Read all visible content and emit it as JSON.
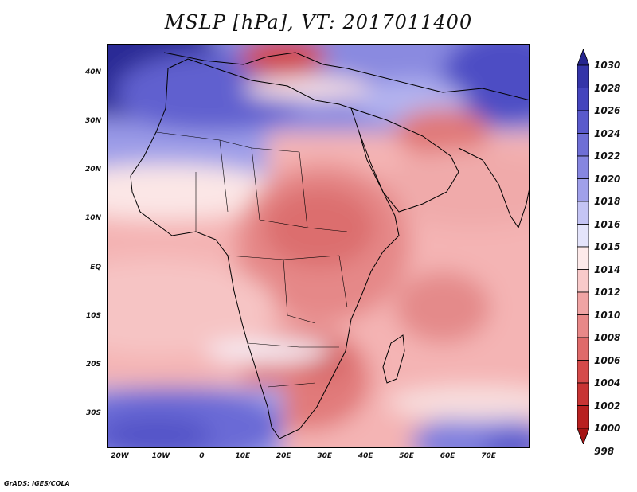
{
  "title": "MSLP [hPa], VT: 2017011400",
  "credit": "GrADS: IGES/COLA",
  "map": {
    "variable": "Mean sea level pressure",
    "units": "hPa",
    "valid_time": "2017011400",
    "lon_range": [
      -23,
      80
    ],
    "lat_range": [
      -37,
      46
    ],
    "lat_ticks": [
      {
        "value": 40,
        "label": "40N"
      },
      {
        "value": 30,
        "label": "30N"
      },
      {
        "value": 20,
        "label": "20N"
      },
      {
        "value": 10,
        "label": "10N"
      },
      {
        "value": 0,
        "label": "EQ"
      },
      {
        "value": -10,
        "label": "10S"
      },
      {
        "value": -20,
        "label": "20S"
      },
      {
        "value": -30,
        "label": "30S"
      }
    ],
    "lon_ticks": [
      {
        "value": -20,
        "label": "20W"
      },
      {
        "value": -10,
        "label": "10W"
      },
      {
        "value": 0,
        "label": "0"
      },
      {
        "value": 10,
        "label": "10E"
      },
      {
        "value": 20,
        "label": "20E"
      },
      {
        "value": 30,
        "label": "30E"
      },
      {
        "value": 40,
        "label": "40E"
      },
      {
        "value": 50,
        "label": "50E"
      },
      {
        "value": 60,
        "label": "60E"
      },
      {
        "value": 70,
        "label": "70E"
      }
    ]
  },
  "colorbar": {
    "levels": [
      "1030",
      "1028",
      "1026",
      "1024",
      "1022",
      "1020",
      "1018",
      "1016",
      "1015",
      "1014",
      "1012",
      "1010",
      "1008",
      "1006",
      "1004",
      "1002",
      "1000",
      "998"
    ],
    "colors": [
      "#25258f",
      "#3434a8",
      "#4444bd",
      "#5a5acc",
      "#6f6fd6",
      "#8686e0",
      "#a0a0ea",
      "#c4c4f4",
      "#e4e4fb",
      "#fdeaea",
      "#f8caca",
      "#f0a4a4",
      "#e88888",
      "#df6a6a",
      "#d54a4a",
      "#c83434",
      "#b82020",
      "#a51414"
    ]
  }
}
